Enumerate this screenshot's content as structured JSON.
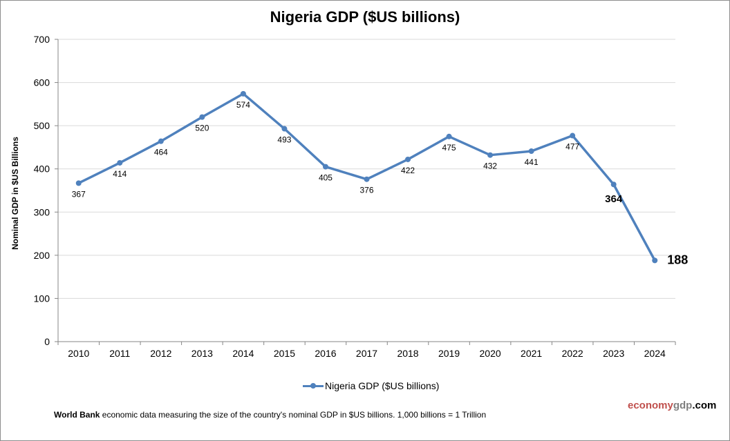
{
  "chart_data": {
    "type": "line",
    "title": "Nigeria GDP ($US billions)",
    "xlabel": "",
    "ylabel": "Nominal GDP in $US Billions",
    "categories": [
      "2010",
      "2011",
      "2012",
      "2013",
      "2014",
      "2015",
      "2016",
      "2017",
      "2018",
      "2019",
      "2020",
      "2021",
      "2022",
      "2023",
      "2024"
    ],
    "series": [
      {
        "name": "Nigeria GDP ($US billions)",
        "color": "#4f81bd",
        "values": [
          367,
          414,
          464,
          520,
          574,
          493,
          405,
          376,
          422,
          475,
          432,
          441,
          477,
          364,
          188
        ],
        "data_labels": [
          "367",
          "414",
          "464",
          "520",
          "574",
          "493",
          "405",
          "376",
          "422",
          "475",
          "432",
          "441",
          "477",
          "364",
          "188"
        ]
      }
    ],
    "ylim": [
      0,
      700
    ],
    "yticks": [
      0,
      100,
      200,
      300,
      400,
      500,
      600,
      700
    ],
    "grid": true,
    "legend_position": "bottom"
  },
  "footer": {
    "source_bold": "World Bank",
    "source_text": " economic data  measuring the size of the country's nominal GDP in $US billions. 1,000 billions = 1 Trillion",
    "brand_part1": "economy",
    "brand_part2": "gdp",
    "brand_part3": ".com"
  }
}
